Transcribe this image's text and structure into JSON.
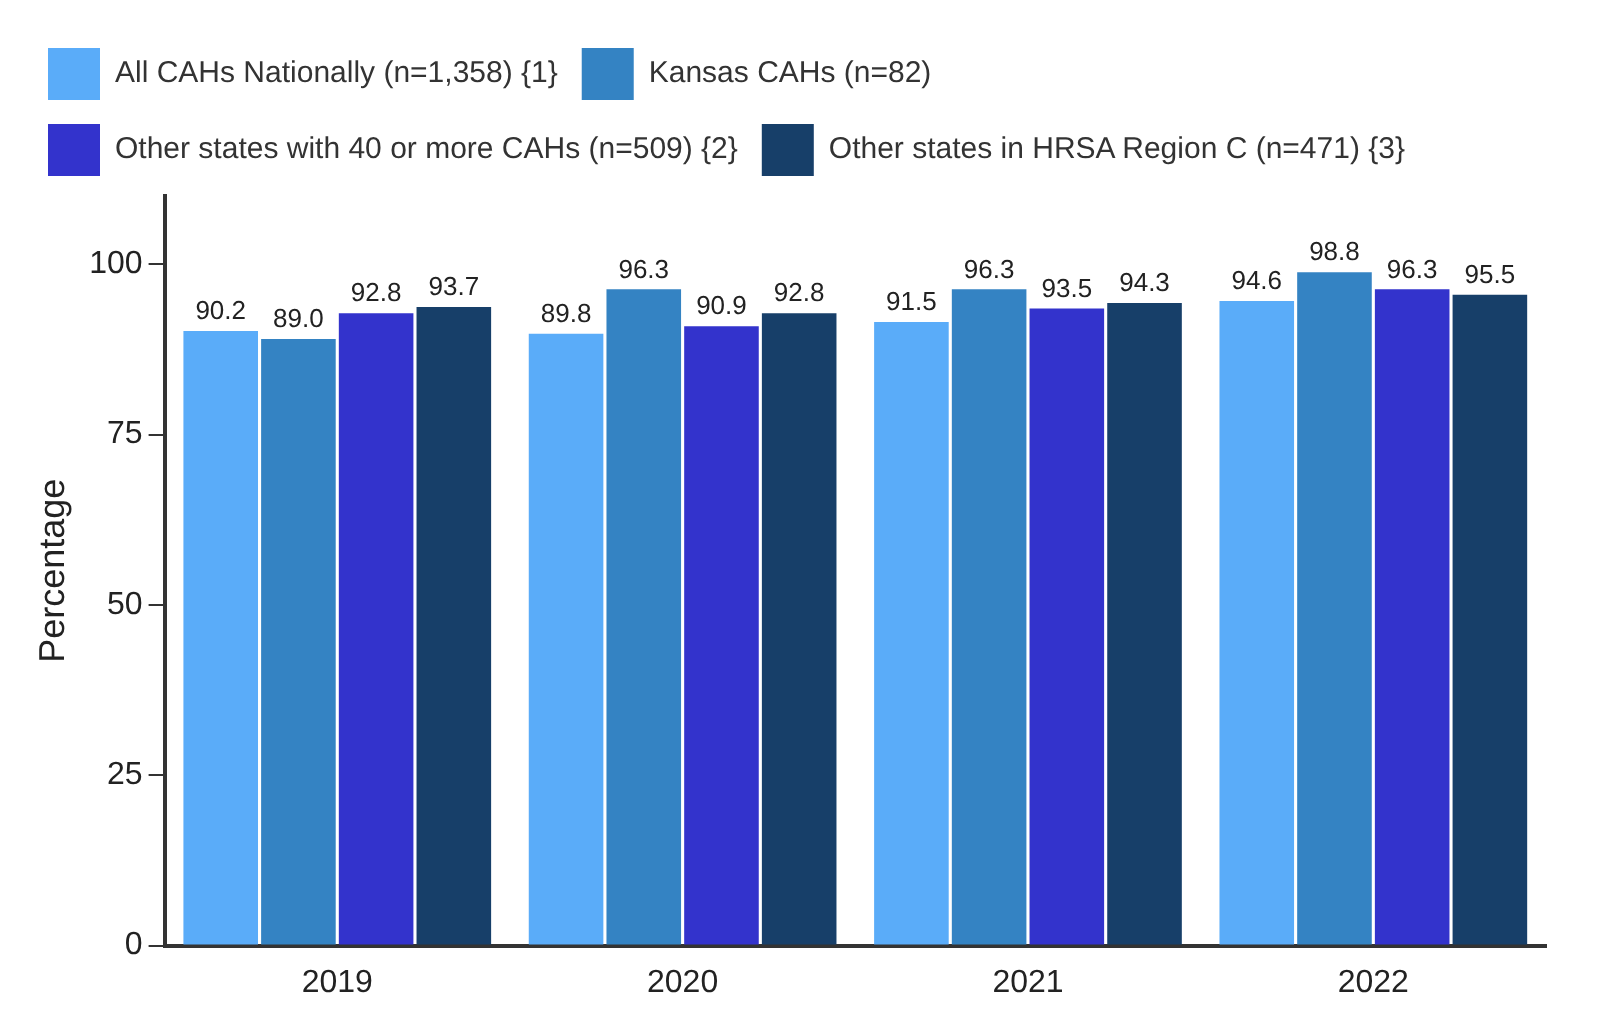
{
  "chart_data": {
    "type": "bar",
    "ylabel": "Percentage",
    "categories": [
      "2019",
      "2020",
      "2021",
      "2022"
    ],
    "series": [
      {
        "name": "All CAHs Nationally (n=1,358) {1}",
        "color": "#5aacf9",
        "values": [
          90.2,
          89.8,
          91.5,
          94.6
        ],
        "value_labels": [
          "90.2",
          "89.8",
          "91.5",
          "94.6"
        ]
      },
      {
        "name": "Kansas CAHs (n=82)",
        "color": "#3483c3",
        "values": [
          89.0,
          96.3,
          96.3,
          98.8
        ],
        "value_labels": [
          "89.0",
          "96.3",
          "96.3",
          "98.8"
        ]
      },
      {
        "name": "Other states with 40 or more CAHs (n=509) {2}",
        "color": "#3333cc",
        "values": [
          92.8,
          90.9,
          93.5,
          96.3
        ],
        "value_labels": [
          "92.8",
          "90.9",
          "93.5",
          "96.3"
        ]
      },
      {
        "name": "Other states in HRSA Region C (n=471) {3}",
        "color": "#173f69",
        "values": [
          93.7,
          92.8,
          94.3,
          95.5
        ],
        "value_labels": [
          "93.7",
          "92.8",
          "94.3",
          "95.5"
        ]
      }
    ],
    "ylim": [
      0,
      110
    ],
    "yticks": [
      0,
      25,
      50,
      75,
      100
    ],
    "grid": false,
    "legend": "top"
  }
}
